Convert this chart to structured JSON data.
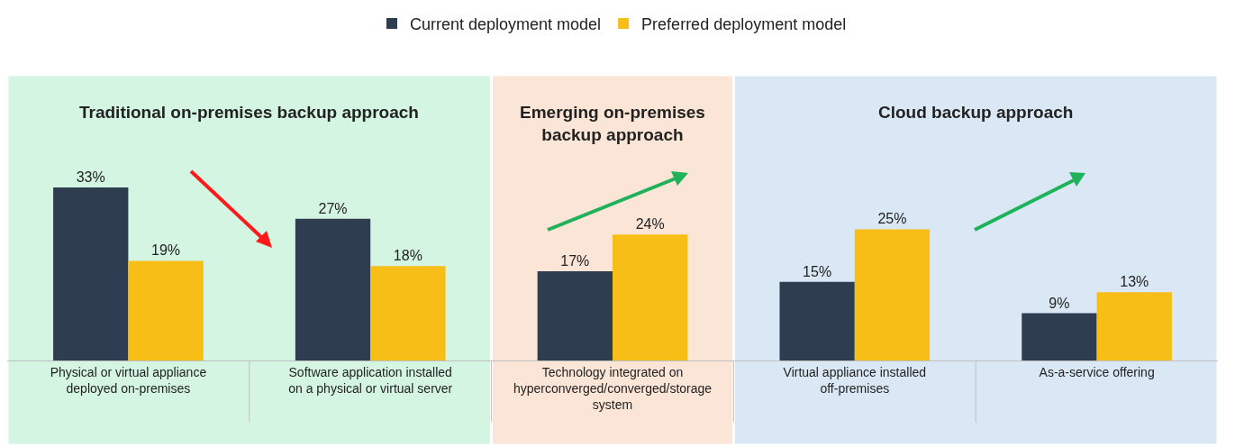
{
  "chart_data": {
    "type": "bar",
    "categories": [
      "Physical or virtual appliance deployed on-premises",
      "Software application installed on a physical or virtual server",
      "Technology integrated on hyperconverged/converged/storage system",
      "Virtual appliance installed off-premises",
      "As-a-service offering"
    ],
    "series": [
      {
        "name": "Current deployment model",
        "color": "#2e3d50",
        "values": [
          33,
          27,
          17,
          15,
          9
        ],
        "value_labels": [
          "33%",
          "27%",
          "17%",
          "15%",
          "9%"
        ]
      },
      {
        "name": "Preferred deployment model",
        "color": "#f6be16",
        "values": [
          19,
          18,
          24,
          25,
          13
        ],
        "value_labels": [
          "19%",
          "18%",
          "24%",
          "25%",
          "13%"
        ]
      }
    ],
    "bands": [
      {
        "axis": "x",
        "from": "Physical or virtual appliance deployed on-premises",
        "to": "Software application installed on a physical or virtual server",
        "label": "Traditional on-premises backup approach",
        "color": "#d5f5e3"
      },
      {
        "axis": "x",
        "from": "Technology integrated on hyperconverged/converged/storage system",
        "to": "Technology integrated on hyperconverged/converged/storage system",
        "label": "Emerging on-premises backup approach",
        "color": "#fbe5d6"
      },
      {
        "axis": "x",
        "from": "Virtual appliance installed off-premises",
        "to": "As-a-service offering",
        "label": "Cloud backup approach",
        "color": "#dae8f5"
      }
    ],
    "grid": false,
    "legend": "top",
    "tick_labels": "x"
  }
}
